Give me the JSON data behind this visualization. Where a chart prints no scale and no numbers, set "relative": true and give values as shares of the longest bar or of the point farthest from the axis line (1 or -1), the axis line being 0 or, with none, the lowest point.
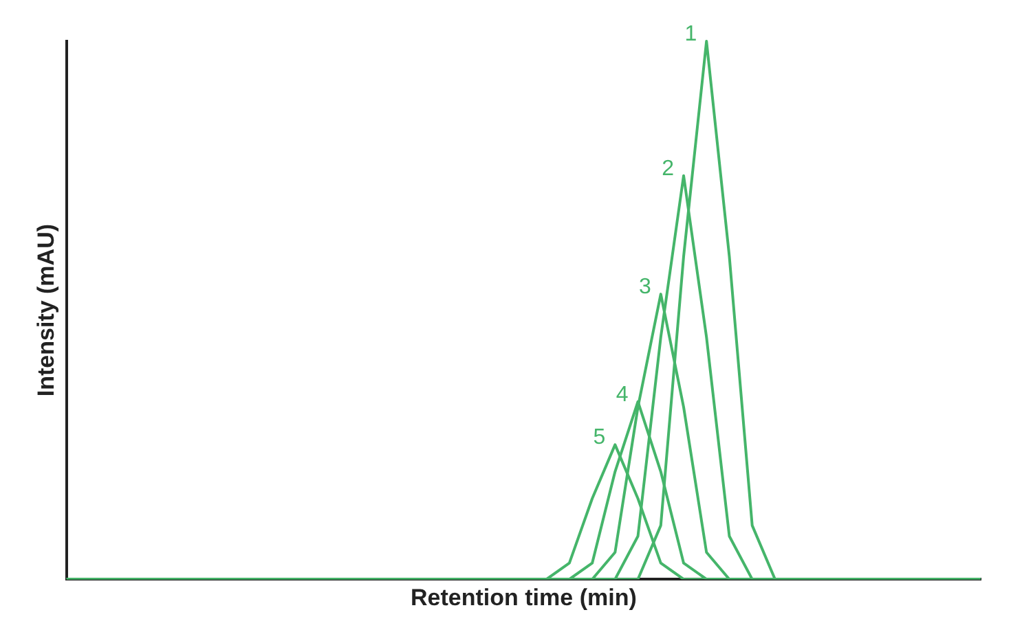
{
  "chart_data": {
    "type": "line",
    "relative": true,
    "xlabel": "Retention time (min)",
    "ylabel": "Intensity (mAU)",
    "legend": false,
    "grid": false,
    "marker": "none",
    "line_style": "solid",
    "categories": [
      null,
      null,
      null,
      null,
      null,
      null,
      null,
      null,
      null,
      null,
      null,
      null,
      null,
      null,
      null,
      null,
      null,
      null,
      null,
      null,
      null,
      null,
      null,
      null,
      null,
      null,
      null,
      null,
      null,
      null,
      null,
      null,
      null,
      null,
      null,
      null,
      null,
      null,
      null,
      null,
      null
    ],
    "series": [
      {
        "name": "1",
        "color": "#45b56a",
        "values": [
          0,
          0,
          0,
          0,
          0,
          0,
          0,
          0,
          0,
          0,
          0,
          0,
          0,
          0,
          0,
          0,
          0,
          0,
          0,
          0,
          0,
          0,
          0,
          0,
          0,
          0,
          0.1,
          0.6,
          1,
          0.6,
          0.1,
          0,
          0,
          0,
          0,
          0,
          0,
          0,
          0,
          0,
          0
        ]
      },
      {
        "name": "2",
        "color": "#45b56a",
        "values": [
          0,
          0,
          0,
          0,
          0,
          0,
          0,
          0,
          0,
          0,
          0,
          0,
          0,
          0,
          0,
          0,
          0,
          0,
          0,
          0,
          0,
          0,
          0,
          0,
          0,
          0.08,
          0.45,
          0.75,
          0.45,
          0.08,
          0,
          0,
          0,
          0,
          0,
          0,
          0,
          0,
          0,
          0,
          0
        ]
      },
      {
        "name": "3",
        "color": "#45b56a",
        "values": [
          0,
          0,
          0,
          0,
          0,
          0,
          0,
          0,
          0,
          0,
          0,
          0,
          0,
          0,
          0,
          0,
          0,
          0,
          0,
          0,
          0,
          0,
          0,
          0,
          0.05,
          0.32,
          0.53,
          0.32,
          0.05,
          0,
          0,
          0,
          0,
          0,
          0,
          0,
          0,
          0,
          0,
          0,
          0
        ]
      },
      {
        "name": "4",
        "color": "#45b56a",
        "values": [
          0,
          0,
          0,
          0,
          0,
          0,
          0,
          0,
          0,
          0,
          0,
          0,
          0,
          0,
          0,
          0,
          0,
          0,
          0,
          0,
          0,
          0,
          0,
          0.03,
          0.2,
          0.33,
          0.2,
          0.03,
          0,
          0,
          0,
          0,
          0,
          0,
          0,
          0,
          0,
          0,
          0,
          0,
          0
        ]
      },
      {
        "name": "5",
        "color": "#45b56a",
        "values": [
          0,
          0,
          0,
          0,
          0,
          0,
          0,
          0,
          0,
          0,
          0,
          0,
          0,
          0,
          0,
          0,
          0,
          0,
          0,
          0,
          0,
          0,
          0.03,
          0.15,
          0.25,
          0.15,
          0.03,
          0,
          0,
          0,
          0,
          0,
          0,
          0,
          0,
          0,
          0,
          0,
          0,
          0,
          0
        ]
      }
    ]
  }
}
